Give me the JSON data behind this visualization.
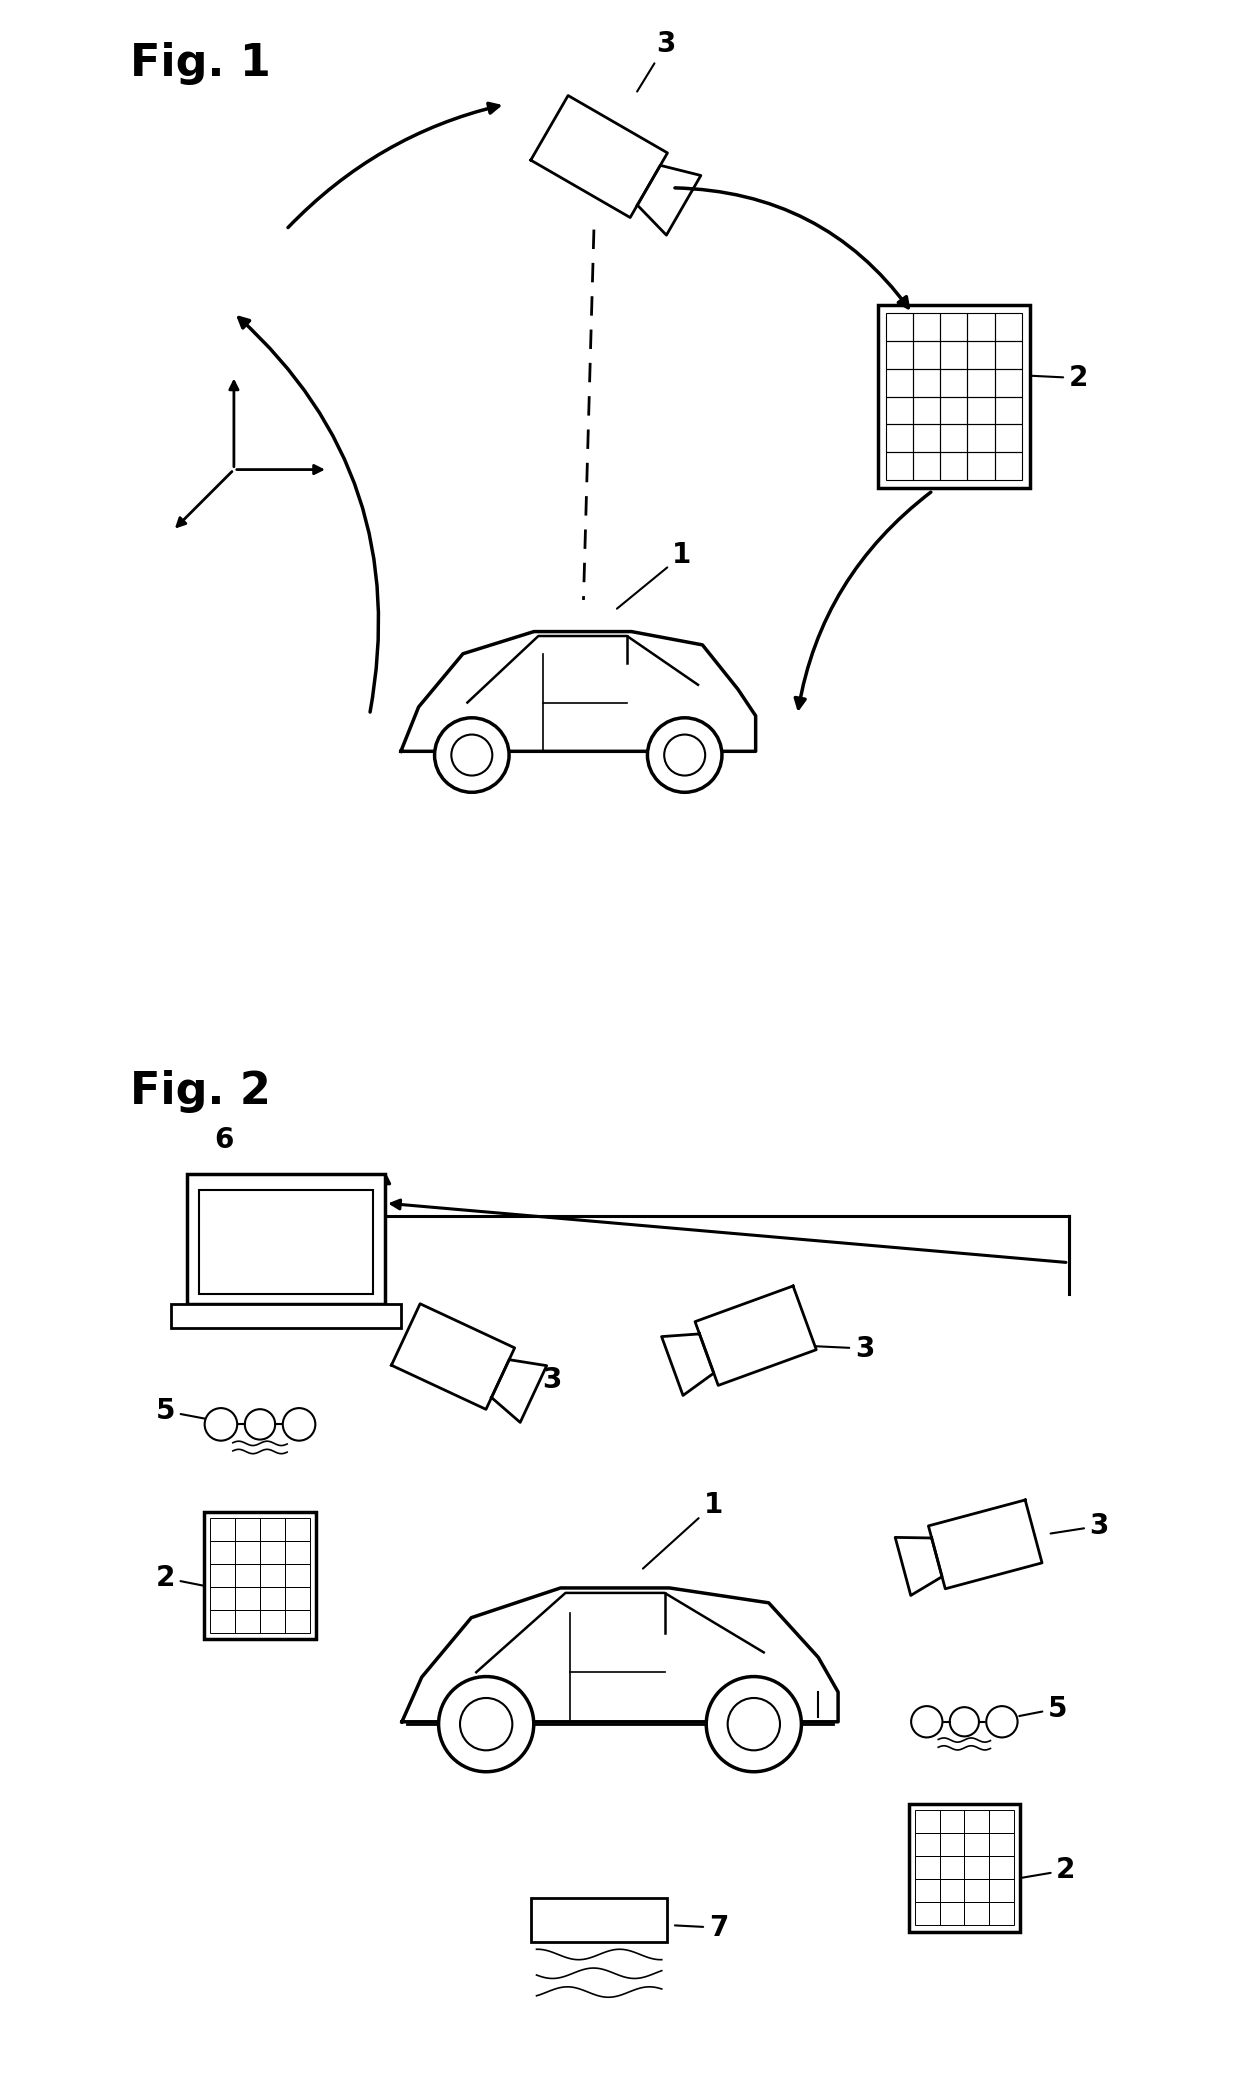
{
  "fig1_label": "Fig. 1",
  "fig2_label": "Fig. 2",
  "background_color": "#ffffff",
  "line_color": "#000000",
  "number_fontsize": 20,
  "fig_label_fontsize": 32
}
